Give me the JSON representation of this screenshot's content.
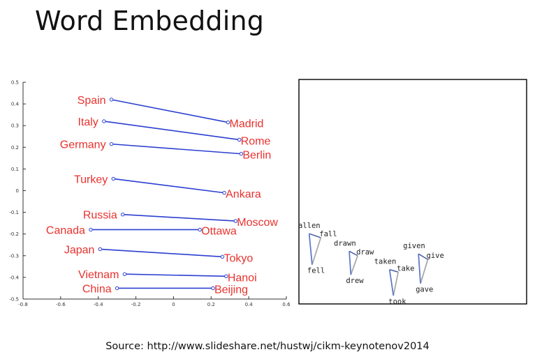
{
  "title": "Word Embedding",
  "source": "Source: http://www.slideshare.net/hustwj/cikm-keynotenov2014",
  "colors": {
    "label": "#e8322e",
    "line": "#2b3fd0",
    "frame": "#000000"
  },
  "chart_data": [
    {
      "type": "scatter",
      "xlim": [
        -0.8,
        0.6
      ],
      "ylim": [
        -0.5,
        0.5
      ],
      "xticks": [
        "-0.8",
        "-0.6",
        "-0.4",
        "-0.2",
        "0",
        "0.2",
        "0.4",
        "0.6"
      ],
      "yticks": [
        "0.5",
        "0.4",
        "0.3",
        "0.2",
        "0.1",
        "0",
        "-0.1",
        "-0.2",
        "-0.3",
        "-0.4",
        "-0.5"
      ],
      "pairs": [
        {
          "country": "Spain",
          "capital": "Madrid",
          "c": [
            -0.33,
            0.42
          ],
          "k": [
            0.29,
            0.315
          ]
        },
        {
          "country": "Italy",
          "capital": "Rome",
          "c": [
            -0.37,
            0.32
          ],
          "k": [
            0.35,
            0.235
          ]
        },
        {
          "country": "Germany",
          "capital": "Berlin",
          "c": [
            -0.33,
            0.215
          ],
          "k": [
            0.36,
            0.17
          ]
        },
        {
          "country": "Turkey",
          "capital": "Ankara",
          "c": [
            -0.32,
            0.055
          ],
          "k": [
            0.27,
            -0.01
          ]
        },
        {
          "country": "Russia",
          "capital": "Moscow",
          "c": [
            -0.27,
            -0.11
          ],
          "k": [
            0.33,
            -0.14
          ]
        },
        {
          "country": "Canada",
          "capital": "Ottawa",
          "c": [
            -0.44,
            -0.18
          ],
          "k": [
            0.14,
            -0.18
          ]
        },
        {
          "country": "Japan",
          "capital": "Tokyo",
          "c": [
            -0.39,
            -0.27
          ],
          "k": [
            0.26,
            -0.305
          ]
        },
        {
          "country": "Vietnam",
          "capital": "Hanoi",
          "c": [
            -0.26,
            -0.385
          ],
          "k": [
            0.28,
            -0.395
          ]
        },
        {
          "country": "China",
          "capital": "Beijing",
          "c": [
            -0.3,
            -0.45
          ],
          "k": [
            0.21,
            -0.45
          ]
        }
      ]
    },
    {
      "type": "scatter",
      "triangles": [
        {
          "words": [
            "fallen",
            "fall",
            "fell"
          ],
          "points": [
            [
              0.045,
              0.313
            ],
            [
              0.096,
              0.295
            ],
            [
              0.058,
              0.175
            ]
          ]
        },
        {
          "words": [
            "drawn",
            "draw",
            "drew"
          ],
          "points": [
            [
              0.221,
              0.235
            ],
            [
              0.258,
              0.215
            ],
            [
              0.228,
              0.13
            ]
          ]
        },
        {
          "words": [
            "taken",
            "take",
            "took"
          ],
          "points": [
            [
              0.398,
              0.153
            ],
            [
              0.436,
              0.142
            ],
            [
              0.415,
              0.037
            ]
          ]
        },
        {
          "words": [
            "given",
            "give",
            "gave"
          ],
          "points": [
            [
              0.525,
              0.223
            ],
            [
              0.566,
              0.198
            ],
            [
              0.534,
              0.091
            ]
          ]
        }
      ]
    }
  ]
}
